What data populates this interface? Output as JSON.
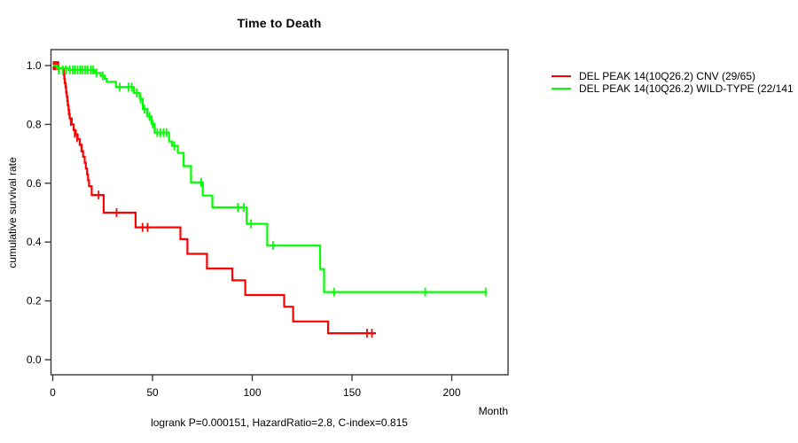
{
  "title": "Time to Death",
  "footer": "logrank P=0.000151, HazardRatio=2.8, C-index=0.815",
  "axes": {
    "x_label": "Month",
    "y_label": "cumulative survival rate"
  },
  "legend": {
    "items": [
      {
        "label": "DEL PEAK 14(10Q26.2) CNV (29/65)",
        "color": "#ff0000"
      },
      {
        "label": "DEL PEAK 14(10Q26.2) WILD-TYPE (22/141",
        "color": "#00ff00"
      }
    ]
  },
  "chart_data": {
    "type": "line",
    "subtype": "kaplan-meier-step-curves",
    "title": "Time to Death",
    "xlabel": "Month",
    "ylabel": "cumulative survival rate",
    "xlim": [
      0,
      228
    ],
    "ylim": [
      0.0,
      1.0
    ],
    "x_ticks": [
      0,
      50,
      100,
      150,
      200
    ],
    "y_ticks": [
      0.0,
      0.2,
      0.4,
      0.6,
      0.8,
      1.0
    ],
    "grid": false,
    "legend_position": "top-right-outside",
    "annotation": "logrank P=0.000151, HazardRatio=2.8, C-index=0.815",
    "series": [
      {
        "key": "cnv",
        "name": "DEL PEAK 14(10Q26.2) CNV (29/65)",
        "color": "#ff0000",
        "steps": [
          [
            0,
            1.0
          ],
          [
            1,
            0.99
          ],
          [
            5.5,
            0.97
          ],
          [
            5.8,
            0.955
          ],
          [
            6.1,
            0.94
          ],
          [
            6.4,
            0.925
          ],
          [
            6.7,
            0.91
          ],
          [
            7.0,
            0.895
          ],
          [
            7.3,
            0.88
          ],
          [
            7.6,
            0.865
          ],
          [
            7.9,
            0.85
          ],
          [
            8.2,
            0.835
          ],
          [
            8.5,
            0.82
          ],
          [
            9.5,
            0.8
          ],
          [
            10.5,
            0.78
          ],
          [
            11.5,
            0.765
          ],
          [
            12.5,
            0.75
          ],
          [
            13.5,
            0.73
          ],
          [
            14.5,
            0.71
          ],
          [
            15.2,
            0.69
          ],
          [
            16,
            0.67
          ],
          [
            16.6,
            0.65
          ],
          [
            17.2,
            0.63
          ],
          [
            17.7,
            0.61
          ],
          [
            18.2,
            0.59
          ],
          [
            19.5,
            0.56
          ],
          [
            25.5,
            0.5
          ],
          [
            41.5,
            0.45
          ],
          [
            64,
            0.41
          ],
          [
            67.5,
            0.36
          ],
          [
            77.3,
            0.31
          ],
          [
            90,
            0.27
          ],
          [
            96.5,
            0.22
          ],
          [
            116,
            0.18
          ],
          [
            120.5,
            0.13
          ],
          [
            138,
            0.09
          ]
        ],
        "end_month": 162,
        "censors": [
          [
            0.4,
            1.0
          ],
          [
            1.2,
            1.0
          ],
          [
            2,
            1.0
          ],
          [
            2.8,
            1.0
          ],
          [
            5.9,
            0.955
          ],
          [
            6.6,
            0.92
          ],
          [
            7.4,
            0.88
          ],
          [
            8,
            0.845
          ],
          [
            9,
            0.81
          ],
          [
            11,
            0.77
          ],
          [
            12.2,
            0.755
          ],
          [
            14.3,
            0.72
          ],
          [
            23,
            0.56
          ],
          [
            32,
            0.5
          ],
          [
            45,
            0.45
          ],
          [
            47.5,
            0.45
          ],
          [
            157.5,
            0.09
          ],
          [
            160,
            0.09
          ]
        ]
      },
      {
        "key": "wild-type",
        "name": "DEL PEAK 14(10Q26.2) WILD-TYPE (22/141",
        "color": "#00ff00",
        "steps": [
          [
            0,
            1.0
          ],
          [
            2,
            0.99
          ],
          [
            8,
            0.985
          ],
          [
            21,
            0.975
          ],
          [
            24,
            0.965
          ],
          [
            26,
            0.955
          ],
          [
            27,
            0.945
          ],
          [
            31.7,
            0.927
          ],
          [
            40.7,
            0.907
          ],
          [
            43.6,
            0.887
          ],
          [
            45.1,
            0.852
          ],
          [
            47.3,
            0.827
          ],
          [
            49.5,
            0.802
          ],
          [
            51,
            0.772
          ],
          [
            58.3,
            0.742
          ],
          [
            59.8,
            0.727
          ],
          [
            62.7,
            0.703
          ],
          [
            65.6,
            0.658
          ],
          [
            69.3,
            0.603
          ],
          [
            75.2,
            0.558
          ],
          [
            80,
            0.518
          ],
          [
            97.2,
            0.462
          ],
          [
            107.5,
            0.388
          ],
          [
            134,
            0.308
          ],
          [
            136,
            0.23
          ]
        ],
        "end_month": 217.5,
        "censors": [
          [
            3,
            0.985
          ],
          [
            5,
            0.985
          ],
          [
            6.5,
            0.985
          ],
          [
            8.5,
            0.985
          ],
          [
            10,
            0.985
          ],
          [
            11.2,
            0.985
          ],
          [
            12.5,
            0.985
          ],
          [
            13.8,
            0.985
          ],
          [
            15,
            0.985
          ],
          [
            16.2,
            0.985
          ],
          [
            17.5,
            0.985
          ],
          [
            19,
            0.985
          ],
          [
            20.3,
            0.985
          ],
          [
            22,
            0.975
          ],
          [
            25,
            0.965
          ],
          [
            33.6,
            0.927
          ],
          [
            38,
            0.927
          ],
          [
            39.5,
            0.927
          ],
          [
            42,
            0.907
          ],
          [
            44,
            0.887
          ],
          [
            46,
            0.852
          ],
          [
            48.5,
            0.827
          ],
          [
            50,
            0.802
          ],
          [
            52.4,
            0.772
          ],
          [
            54,
            0.772
          ],
          [
            55.5,
            0.772
          ],
          [
            57,
            0.772
          ],
          [
            61,
            0.727
          ],
          [
            74.4,
            0.603
          ],
          [
            92.8,
            0.518
          ],
          [
            95.8,
            0.518
          ],
          [
            99.4,
            0.462
          ],
          [
            110.4,
            0.388
          ],
          [
            141,
            0.23
          ],
          [
            186.7,
            0.23
          ],
          [
            217,
            0.23
          ]
        ]
      }
    ]
  }
}
